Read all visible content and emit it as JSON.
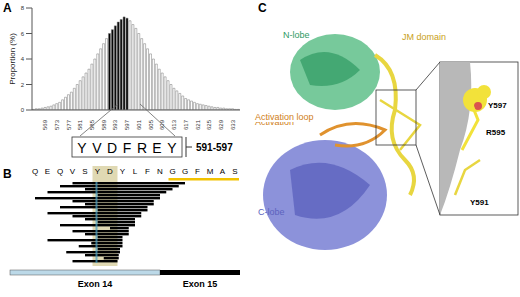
{
  "chart_data": {
    "type": "bar",
    "y_label": "Proportion (%)",
    "categories": [
      null,
      null,
      null,
      null,
      "569",
      null,
      null,
      null,
      "573",
      null,
      null,
      null,
      "577",
      null,
      null,
      null,
      "581",
      null,
      null,
      null,
      "585",
      null,
      null,
      null,
      "589",
      null,
      null,
      null,
      "593",
      null,
      null,
      null,
      "597",
      null,
      null,
      null,
      "601",
      null,
      null,
      null,
      "605",
      null,
      null,
      null,
      "609",
      null,
      null,
      null,
      "613",
      null,
      null,
      null,
      "617",
      null,
      null,
      null,
      "621",
      null,
      null,
      null,
      "625",
      null,
      null,
      null,
      "629",
      null,
      null,
      null,
      "633",
      null,
      null
    ],
    "values": [
      0.05,
      0.1,
      0.1,
      0.15,
      0.2,
      0.25,
      0.3,
      0.4,
      0.5,
      0.6,
      0.8,
      1.0,
      1.2,
      1.4,
      1.7,
      2.0,
      2.3,
      2.6,
      2.9,
      3.2,
      3.6,
      4.0,
      4.4,
      4.8,
      5.2,
      5.6,
      6.0,
      6.3,
      6.6,
      6.9,
      7.1,
      7.3,
      7.2,
      7.0,
      6.7,
      6.4,
      6.0,
      5.6,
      5.2,
      4.8,
      4.4,
      4.0,
      3.6,
      3.2,
      2.9,
      2.6,
      2.3,
      2.0,
      1.7,
      1.5,
      1.3,
      1.1,
      0.9,
      0.8,
      0.7,
      0.6,
      0.5,
      0.45,
      0.4,
      0.35,
      0.3,
      0.25,
      0.2,
      0.2,
      0.15,
      0.15,
      0.1,
      0.1,
      0.1,
      0.05,
      0.05
    ],
    "colors": [
      "#ffffff",
      "#ffffff",
      "#ffffff",
      "#ffffff",
      "#ffffff",
      "#ffffff",
      "#ffffff",
      "#ffffff",
      "#ffffff",
      "#ffffff",
      "#ffffff",
      "#ffffff",
      "#ffffff",
      "#ffffff",
      "#ffffff",
      "#ffffff",
      "#ffffff",
      "#ffffff",
      "#ffffff",
      "#ffffff",
      "#ffffff",
      "#ffffff",
      "#ffffff",
      "#ffffff",
      "#ffffff",
      "#ffffff",
      "#000000",
      "#000000",
      "#000000",
      "#000000",
      "#000000",
      "#000000",
      "#000000",
      "#ffffff",
      "#ffffff",
      "#ffffff",
      "#ffffff",
      "#ffffff",
      "#ffffff",
      "#ffffff",
      "#ffffff",
      "#ffffff",
      "#ffffff",
      "#ffffff",
      "#ffffff",
      "#ffffff",
      "#ffffff",
      "#ffffff",
      "#ffffff",
      "#ffffff",
      "#ffffff",
      "#ffffff",
      "#ffffff",
      "#ffffff",
      "#ffffff",
      "#ffffff",
      "#ffffff",
      "#ffffff",
      "#ffffff",
      "#ffffff",
      "#ffffff",
      "#ffffff",
      "#ffffff",
      "#ffffff",
      "#ffffff",
      "#ffffff",
      "#ffffff",
      "#ffffff",
      "#ffffff",
      "#ffffff",
      "#ffffff"
    ],
    "ylim": [
      0,
      8
    ],
    "yticks": [
      0,
      2,
      4,
      6,
      8
    ]
  },
  "panel_labels": [
    "A",
    "B",
    "C"
  ],
  "sequence_box": {
    "text": "YVDFREY",
    "label": "591-597"
  },
  "alignment": {
    "residues": [
      "Q",
      "E",
      "Q",
      "V",
      "S",
      "Y",
      "D",
      "Y",
      "L",
      "F",
      "N",
      "G",
      "G",
      "F",
      "M",
      "A",
      "S"
    ],
    "duplications": [
      [
        3,
        12
      ],
      [
        2,
        11.5
      ],
      [
        4,
        11
      ],
      [
        1,
        10.5
      ],
      [
        5,
        10
      ],
      [
        0,
        10
      ],
      [
        3,
        9.5
      ],
      [
        4,
        9.5
      ],
      [
        2,
        9
      ],
      [
        5,
        9
      ],
      [
        1,
        8.5
      ],
      [
        3,
        8.5
      ],
      [
        4,
        8
      ],
      [
        5,
        8
      ],
      [
        2,
        8
      ],
      [
        6,
        7.5
      ],
      [
        3,
        7.5
      ],
      [
        4,
        7.5
      ],
      [
        5,
        7
      ],
      [
        1,
        7
      ],
      [
        4.5,
        7
      ],
      [
        3.5,
        7
      ],
      [
        5,
        6.8
      ],
      [
        2.5,
        6.8
      ],
      [
        4,
        6.7
      ],
      [
        5.5,
        6.7
      ],
      [
        3,
        6.6
      ]
    ],
    "exons": [
      "Exon 14",
      "Exon 15"
    ]
  },
  "structure": {
    "n_lobe": "N-lobe",
    "jm_domain": "JM domain",
    "activation_loop": "Activation loop",
    "c_lobe": "C-lobe",
    "residues": [
      "Y597",
      "R595",
      "Y591"
    ]
  }
}
